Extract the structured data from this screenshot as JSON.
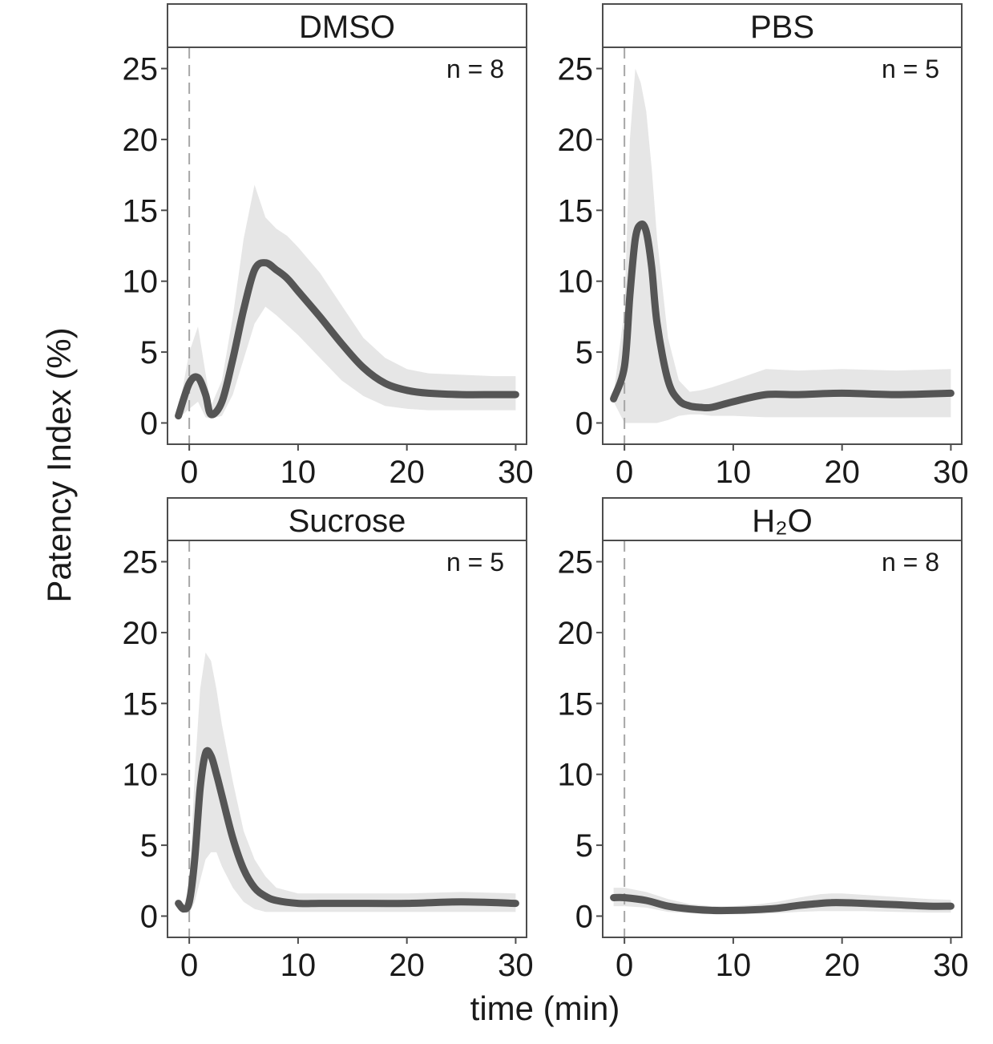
{
  "figure": {
    "xlabel": "time (min)",
    "ylabel": "Patency Index (%)"
  },
  "chart_data": [
    {
      "type": "line",
      "panel": "DMSO",
      "annotation": "n = 8",
      "xlim": [
        -2,
        31
      ],
      "ylim": [
        -1.5,
        26.5
      ],
      "xticks": [
        "0",
        "10",
        "20",
        "30"
      ],
      "yticks": [
        "0",
        "5",
        "10",
        "15",
        "20",
        "25"
      ],
      "vline_x": 0,
      "x": [
        -1,
        0,
        0.8,
        1.5,
        2,
        3,
        4,
        5,
        6,
        7,
        8,
        9,
        10,
        12,
        14,
        16,
        18,
        20,
        22,
        25,
        28,
        30
      ],
      "y": [
        0.5,
        2.8,
        3.2,
        2,
        0.6,
        1.5,
        4.5,
        8,
        10.8,
        11.3,
        10.8,
        10.2,
        9.3,
        7.5,
        5.6,
        3.9,
        2.8,
        2.3,
        2.1,
        2,
        2,
        2
      ],
      "lower": [
        0.3,
        1,
        1.5,
        0.4,
        0.3,
        0.5,
        2,
        4.5,
        7,
        8.2,
        7.6,
        6.9,
        6.2,
        4.6,
        3,
        1.9,
        1.2,
        1,
        0.9,
        0.9,
        0.9,
        0.9
      ],
      "upper": [
        0.8,
        5,
        6.8,
        3.5,
        1.2,
        3,
        7.5,
        13,
        16.8,
        14.5,
        13.7,
        13.2,
        12.4,
        10.6,
        8.3,
        6,
        4.6,
        3.8,
        3.5,
        3.4,
        3.3,
        3.3
      ]
    },
    {
      "type": "line",
      "panel": "PBS",
      "annotation": "n = 5",
      "xlim": [
        -2,
        31
      ],
      "ylim": [
        -1.5,
        26.5
      ],
      "xticks": [
        "0",
        "10",
        "20",
        "30"
      ],
      "yticks": [
        "0",
        "5",
        "10",
        "15",
        "20",
        "25"
      ],
      "vline_x": 0,
      "x": [
        -1,
        0,
        0.5,
        1,
        1.5,
        2,
        2.5,
        3,
        4,
        5,
        6,
        7,
        8,
        10,
        13,
        16,
        20,
        25,
        30
      ],
      "y": [
        1.7,
        4,
        9,
        13,
        14,
        13.5,
        11,
        7,
        3,
        1.6,
        1.2,
        1.1,
        1.1,
        1.5,
        2,
        2,
        2.1,
        2,
        2.1
      ],
      "lower": [
        1.5,
        0,
        0,
        0,
        0,
        0,
        0,
        0,
        0.2,
        0.5,
        0.6,
        0.6,
        0.5,
        0.5,
        0.4,
        0.4,
        0.4,
        0.4,
        0.4
      ],
      "upper": [
        2,
        8,
        20,
        25,
        24,
        22,
        18,
        13,
        6,
        3,
        2.2,
        2.3,
        2.5,
        3,
        3.8,
        3.7,
        3.8,
        3.7,
        3.8
      ]
    },
    {
      "type": "line",
      "panel": "Sucrose",
      "annotation": "n = 5",
      "xlim": [
        -2,
        31
      ],
      "ylim": [
        -1.5,
        26.5
      ],
      "xticks": [
        "0",
        "10",
        "20",
        "30"
      ],
      "yticks": [
        "0",
        "5",
        "10",
        "15",
        "20",
        "25"
      ],
      "vline_x": 0,
      "x": [
        -1,
        -0.5,
        0,
        0.5,
        1,
        1.5,
        2,
        2.5,
        3,
        4,
        5,
        6,
        7,
        8,
        10,
        12,
        15,
        20,
        25,
        30
      ],
      "y": [
        0.9,
        0.5,
        1,
        4,
        9,
        11.5,
        11.3,
        10,
        8.5,
        5.5,
        3.3,
        2,
        1.4,
        1.1,
        0.9,
        0.9,
        0.9,
        0.9,
        1,
        0.9
      ],
      "lower": [
        0.7,
        0.3,
        0.2,
        1,
        2.5,
        4,
        4.5,
        4.5,
        3.5,
        2,
        1,
        0.5,
        0.3,
        0.3,
        0.3,
        0.3,
        0.3,
        0.3,
        0.3,
        0.3
      ],
      "upper": [
        1,
        0.8,
        2,
        10,
        16,
        18.6,
        18,
        16,
        13.5,
        9.5,
        6,
        4,
        2.8,
        2,
        1.6,
        1.6,
        1.6,
        1.6,
        1.7,
        1.6
      ]
    },
    {
      "type": "line",
      "panel": "H₂O",
      "annotation": "n = 8",
      "xlim": [
        -2,
        31
      ],
      "ylim": [
        -1.5,
        26.5
      ],
      "xticks": [
        "0",
        "10",
        "20",
        "30"
      ],
      "yticks": [
        "0",
        "5",
        "10",
        "15",
        "20",
        "25"
      ],
      "vline_x": 0,
      "x": [
        -1,
        0,
        2,
        4,
        6,
        8,
        10,
        12,
        14,
        16,
        18,
        19,
        20,
        22,
        25,
        28,
        30
      ],
      "y": [
        1.3,
        1.3,
        1.1,
        0.7,
        0.5,
        0.4,
        0.4,
        0.45,
        0.55,
        0.75,
        0.9,
        0.95,
        0.95,
        0.9,
        0.8,
        0.7,
        0.7
      ],
      "lower": [
        0.7,
        0.7,
        0.6,
        0.3,
        0.2,
        0.15,
        0.15,
        0.15,
        0.2,
        0.3,
        0.35,
        0.35,
        0.35,
        0.35,
        0.3,
        0.25,
        0.25
      ],
      "upper": [
        2,
        2,
        1.7,
        1.2,
        0.85,
        0.7,
        0.7,
        0.8,
        1,
        1.3,
        1.55,
        1.6,
        1.6,
        1.5,
        1.35,
        1.2,
        1.15
      ]
    }
  ]
}
